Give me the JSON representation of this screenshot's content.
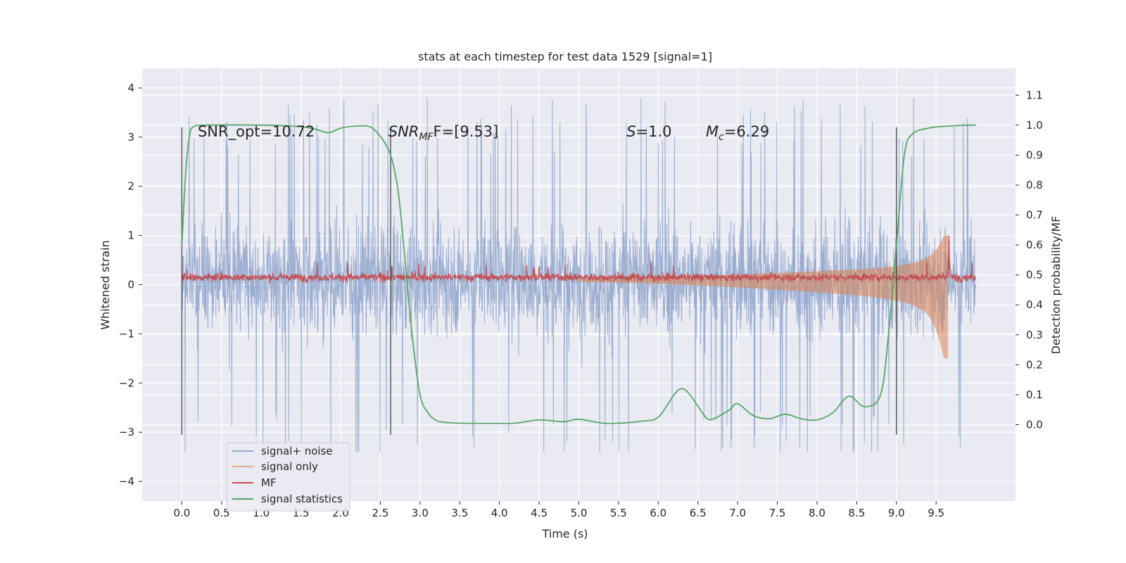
{
  "chart_data": {
    "type": "line",
    "title": "stats at each timestep for test data 1529 [signal=1]",
    "xlabel": "Time (s)",
    "ylabel": "Whitened strain",
    "y2label": "Detection probability/MF",
    "xlim": [
      -0.5,
      10.5
    ],
    "ylim": [
      -4.4,
      4.4
    ],
    "y2lim": [
      -0.255,
      1.19
    ],
    "xticks": [
      0.0,
      0.5,
      1.0,
      1.5,
      2.0,
      2.5,
      3.0,
      3.5,
      4.0,
      4.5,
      5.0,
      5.5,
      6.0,
      6.5,
      7.0,
      7.5,
      8.0,
      8.5,
      9.0,
      9.5
    ],
    "xtick_labels": [
      "0.0",
      "0.5",
      "1.0",
      "1.5",
      "2.0",
      "2.5",
      "3.0",
      "3.5",
      "4.0",
      "4.5",
      "5.0",
      "5.5",
      "6.0",
      "6.5",
      "7.0",
      "7.5",
      "8.0",
      "8.5",
      "9.0",
      "9.5"
    ],
    "yticks": [
      -4,
      -3,
      -2,
      -1,
      0,
      1,
      2,
      3,
      4
    ],
    "ytick_labels": [
      "−4",
      "−3",
      "−2",
      "−1",
      "0",
      "1",
      "2",
      "3",
      "4"
    ],
    "y2ticks": [
      0.0,
      0.1,
      0.2,
      0.3,
      0.4,
      0.5,
      0.6,
      0.7,
      0.8,
      0.9,
      1.0,
      1.1
    ],
    "y2tick_labels": [
      "0.0",
      "0.1",
      "0.2",
      "0.3",
      "0.4",
      "0.5",
      "0.6",
      "0.7",
      "0.8",
      "0.9",
      "1.0",
      "1.1"
    ],
    "grid": true,
    "legend_position": "lower-left",
    "colors": {
      "noise": "#4c72b0",
      "signal": "#dd8452",
      "mf": "#c44e52",
      "stats": "#55a868",
      "vline": "#404040",
      "background": "#eaeaf2"
    },
    "series": [
      {
        "name": "signal+ noise",
        "role": "noise",
        "axis": "left",
        "x_range": [
          0.0,
          10.0
        ],
        "typical_band": [
          -1.8,
          2.0
        ],
        "peak_range": [
          -3.4,
          4.0
        ]
      },
      {
        "name": "signal only",
        "role": "signal",
        "axis": "left",
        "x_range": [
          5.0,
          9.65
        ],
        "peak_time": 9.65,
        "peak_amplitude": 1.0,
        "min_amplitude": -1.5
      },
      {
        "name": "MF",
        "role": "mf",
        "axis": "left",
        "x_range": [
          0.0,
          10.0
        ],
        "baseline": 0.15,
        "spike": {
          "x": 9.66,
          "y": 1.0
        }
      },
      {
        "name": "signal statistics",
        "role": "stats",
        "axis": "right",
        "x": [
          0.0,
          0.05,
          0.1,
          0.15,
          0.3,
          1.0,
          1.5,
          1.7,
          1.85,
          2.0,
          2.2,
          2.4,
          2.6,
          2.7,
          2.75,
          2.8,
          2.9,
          3.0,
          3.1,
          3.2,
          3.3,
          3.5,
          4.0,
          4.2,
          4.5,
          4.8,
          5.0,
          5.3,
          5.5,
          5.8,
          6.0,
          6.2,
          6.3,
          6.4,
          6.6,
          6.7,
          6.9,
          7.0,
          7.2,
          7.4,
          7.6,
          7.8,
          8.0,
          8.2,
          8.4,
          8.6,
          8.8,
          8.9,
          9.0,
          9.1,
          9.2,
          9.4,
          9.6,
          9.9,
          10.0
        ],
        "y": [
          0.6,
          0.85,
          0.97,
          0.995,
          1.0,
          1.0,
          0.995,
          0.985,
          0.975,
          0.99,
          0.997,
          0.99,
          0.92,
          0.82,
          0.72,
          0.58,
          0.3,
          0.1,
          0.04,
          0.015,
          0.008,
          0.005,
          0.004,
          0.005,
          0.016,
          0.01,
          0.018,
          0.005,
          0.005,
          0.012,
          0.025,
          0.1,
          0.12,
          0.1,
          0.025,
          0.02,
          0.05,
          0.07,
          0.03,
          0.02,
          0.035,
          0.02,
          0.016,
          0.04,
          0.095,
          0.06,
          0.1,
          0.3,
          0.6,
          0.9,
          0.97,
          0.99,
          0.996,
          1.0,
          1.0
        ]
      }
    ],
    "vlines": [
      0.0,
      2.63,
      9.0
    ],
    "vline_range": [
      -3.05,
      3.2
    ],
    "annotations": [
      {
        "x": 0.2,
        "y": 3.1,
        "base": "SNR_opt=10.72",
        "sub": ""
      },
      {
        "x": 2.6,
        "y": 3.1,
        "base": "SNR",
        "sub": "MF",
        "tail": "F=[9.53]"
      },
      {
        "x": 5.6,
        "y": 3.1,
        "base": "S",
        "sub": "",
        "tail": "=1.0"
      },
      {
        "x": 6.6,
        "y": 3.1,
        "base": "M",
        "sub": "c",
        "tail": "=6.29"
      }
    ]
  }
}
